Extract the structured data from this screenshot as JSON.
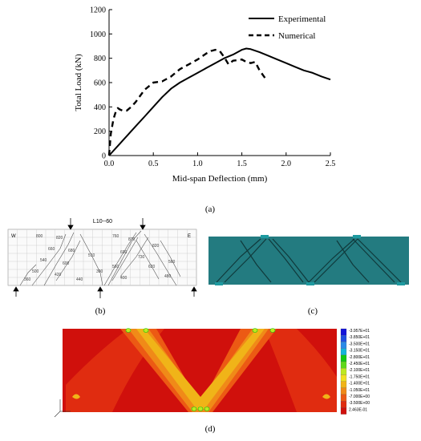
{
  "chart_data": {
    "type": "line",
    "xlabel": "Mid-span Deflection (mm)",
    "ylabel": "Total Load (kN)",
    "xlim": [
      0,
      2.5
    ],
    "ylim": [
      0,
      1200
    ],
    "xticks": [
      "0.0",
      "0.5",
      "1.0",
      "1.5",
      "2.0",
      "2.5"
    ],
    "yticks": [
      "0",
      "200",
      "400",
      "600",
      "800",
      "1000",
      "1200"
    ],
    "legend_position": "top-right",
    "series": [
      {
        "name": "Experimental",
        "style": "solid",
        "x": [
          0,
          0.1,
          0.2,
          0.3,
          0.4,
          0.5,
          0.6,
          0.7,
          0.8,
          0.9,
          1.0,
          1.1,
          1.2,
          1.3,
          1.4,
          1.5,
          1.55,
          1.6,
          1.7,
          1.8,
          1.9,
          2.0,
          2.1,
          2.2,
          2.3,
          2.4,
          2.5
        ],
        "y": [
          0,
          80,
          160,
          240,
          320,
          400,
          480,
          550,
          600,
          640,
          680,
          720,
          760,
          800,
          830,
          870,
          880,
          875,
          850,
          820,
          790,
          760,
          730,
          700,
          680,
          650,
          625
        ]
      },
      {
        "name": "Numerical",
        "style": "dashed",
        "x": [
          0,
          0.02,
          0.05,
          0.08,
          0.1,
          0.12,
          0.15,
          0.2,
          0.25,
          0.3,
          0.4,
          0.5,
          0.6,
          0.7,
          0.8,
          0.9,
          1.0,
          1.1,
          1.15,
          1.2,
          1.25,
          1.3,
          1.35,
          1.4,
          1.5,
          1.55,
          1.6,
          1.65,
          1.7,
          1.75,
          1.78
        ],
        "y": [
          0,
          180,
          300,
          370,
          390,
          380,
          370,
          370,
          400,
          440,
          540,
          600,
          610,
          650,
          710,
          750,
          790,
          840,
          860,
          870,
          860,
          810,
          750,
          780,
          790,
          770,
          760,
          770,
          700,
          650,
          620
        ]
      }
    ]
  },
  "captions": {
    "a": "(a)",
    "b": "(b)",
    "c": "(c)",
    "d": "(d)"
  },
  "panel_b": {
    "specimen": "L10--60",
    "west": "W",
    "east": "E"
  },
  "panel_d": {
    "colorbar_labels": [
      "-3.957E+01",
      "-3.850E+01",
      "-3.500E+01",
      "-3.150E+01",
      "-2.800E+01",
      "-2.450E+01",
      "-2.100E+01",
      "-1.750E+01",
      "-1.400E+01",
      "-1.050E+01",
      "-7.000E+00",
      "-3.500E+00",
      "2.463E-01"
    ],
    "colorbar_colors": [
      "#1414d8",
      "#1f4fe0",
      "#2a8ae8",
      "#14b4d8",
      "#12c812",
      "#5fd81a",
      "#bde820",
      "#f0e020",
      "#f0b418",
      "#f08a18",
      "#ec5a14",
      "#e02c10",
      "#d0100c"
    ]
  }
}
